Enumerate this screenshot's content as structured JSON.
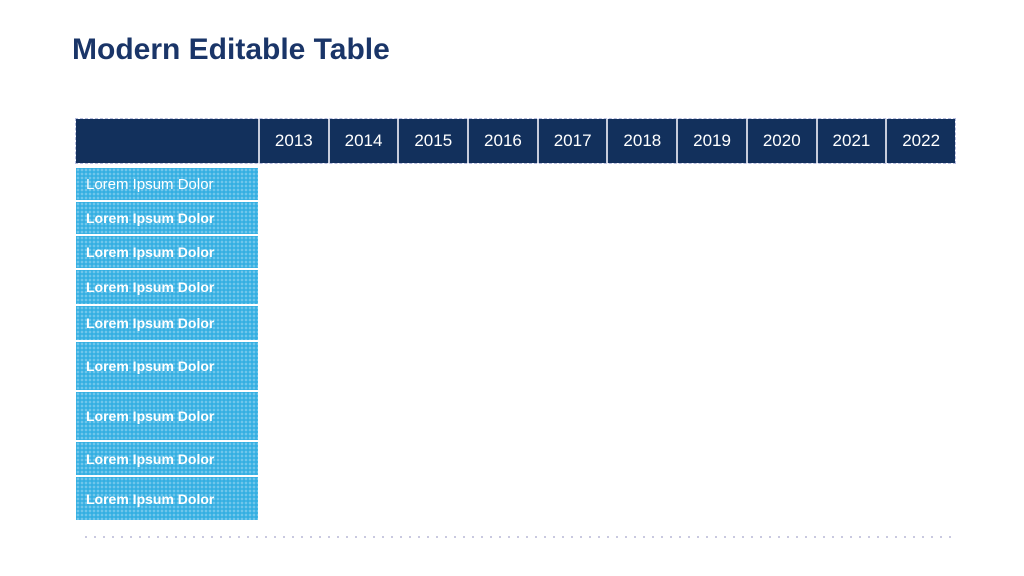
{
  "slide": {
    "title": "Modern Editable Table"
  },
  "table": {
    "years": [
      "2013",
      "2014",
      "2015",
      "2016",
      "2017",
      "2018",
      "2019",
      "2020",
      "2021",
      "2022"
    ],
    "rows": [
      "Lorem Ipsum Dolor",
      "Lorem Ipsum Dolor",
      "Lorem Ipsum Dolor",
      "Lorem Ipsum Dolor",
      "Lorem Ipsum Dolor",
      "Lorem Ipsum Dolor",
      "Lorem Ipsum Dolor",
      "Lorem Ipsum Dolor",
      "Lorem Ipsum Dolor"
    ]
  },
  "colors": {
    "title_text": "#1a3568",
    "header_bg": "#12305c",
    "header_text": "#ffffff",
    "row_bg": "#34afe2",
    "row_text": "#ffffff",
    "cell_separator": "#c7ccdb",
    "dotted_line": "#c9c9e0"
  }
}
